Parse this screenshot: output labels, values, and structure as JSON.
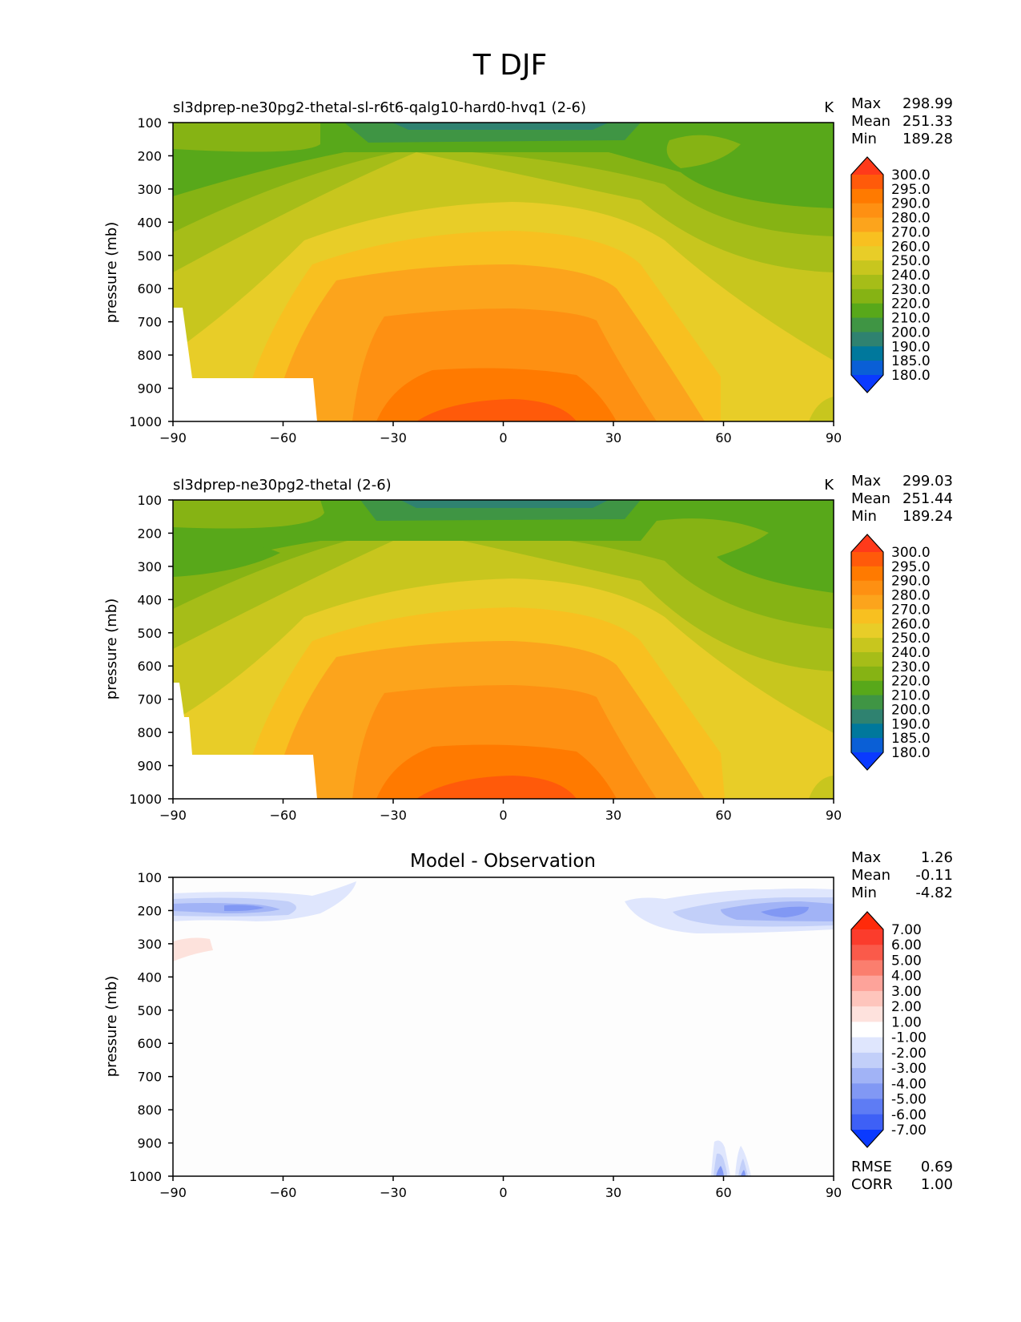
{
  "figure": {
    "title": "T DJF"
  },
  "chart_data": [
    {
      "type": "heatmap",
      "title": "sl3dprep-ne30pg2-thetal-sl-r6t6-qalg10-hard0-hvq1 (2-6)",
      "units": "K",
      "ylabel": "pressure (mb)",
      "xlim": [
        -90,
        90
      ],
      "ylim": [
        1000,
        100
      ],
      "x_ticks": [
        "−90",
        "−60",
        "−30",
        "0",
        "30",
        "60",
        "90"
      ],
      "y_ticks": [
        "100",
        "200",
        "300",
        "400",
        "500",
        "600",
        "700",
        "800",
        "900",
        "1000"
      ],
      "stats": {
        "max_label": "Max",
        "max": "298.99",
        "mean_label": "Mean",
        "mean": "251.33",
        "min_label": "Min",
        "min": "189.28"
      },
      "colorbar_levels": [
        "300.0",
        "295.0",
        "290.0",
        "280.0",
        "270.0",
        "260.0",
        "250.0",
        "240.0",
        "230.0",
        "220.0",
        "210.0",
        "200.0",
        "190.0",
        "185.0",
        "180.0"
      ],
      "colorbar_colors": [
        "#ff3a1a",
        "#ff5a0a",
        "#ff7a00",
        "#fe9012",
        "#fca41c",
        "#f8c020",
        "#e8cd28",
        "#c8c61e",
        "#a6bd18",
        "#86b314",
        "#58a81a",
        "#3f9544",
        "#2f8270",
        "#00789c",
        "#0a5fd6",
        "#0a3aff"
      ]
    },
    {
      "type": "heatmap",
      "title": "sl3dprep-ne30pg2-thetal (2-6)",
      "units": "K",
      "ylabel": "pressure (mb)",
      "xlim": [
        -90,
        90
      ],
      "ylim": [
        1000,
        100
      ],
      "x_ticks": [
        "−90",
        "−60",
        "−30",
        "0",
        "30",
        "60",
        "90"
      ],
      "y_ticks": [
        "100",
        "200",
        "300",
        "400",
        "500",
        "600",
        "700",
        "800",
        "900",
        "1000"
      ],
      "stats": {
        "max_label": "Max",
        "max": "299.03",
        "mean_label": "Mean",
        "mean": "251.44",
        "min_label": "Min",
        "min": "189.24"
      },
      "colorbar_levels": [
        "300.0",
        "295.0",
        "290.0",
        "280.0",
        "270.0",
        "260.0",
        "250.0",
        "240.0",
        "230.0",
        "220.0",
        "210.0",
        "200.0",
        "190.0",
        "185.0",
        "180.0"
      ],
      "colorbar_colors": [
        "#ff3a1a",
        "#ff5a0a",
        "#ff7a00",
        "#fe9012",
        "#fca41c",
        "#f8c020",
        "#e8cd28",
        "#c8c61e",
        "#a6bd18",
        "#86b314",
        "#58a81a",
        "#3f9544",
        "#2f8270",
        "#00789c",
        "#0a5fd6",
        "#0a3aff"
      ]
    },
    {
      "type": "heatmap",
      "title": "Model - Observation",
      "ylabel": "pressure (mb)",
      "xlim": [
        -90,
        90
      ],
      "ylim": [
        1000,
        100
      ],
      "x_ticks": [
        "−90",
        "−60",
        "−30",
        "0",
        "30",
        "60",
        "90"
      ],
      "y_ticks": [
        "100",
        "200",
        "300",
        "400",
        "500",
        "600",
        "700",
        "800",
        "900",
        "1000"
      ],
      "stats": {
        "max_label": "Max",
        "max": "1.26",
        "mean_label": "Mean",
        "mean": "-0.11",
        "min_label": "Min",
        "min": "-4.82"
      },
      "colorbar_levels": [
        "7.00",
        "6.00",
        "5.00",
        "4.00",
        "3.00",
        "2.00",
        "1.00",
        "-1.00",
        "-2.00",
        "-3.00",
        "-4.00",
        "-5.00",
        "-6.00",
        "-7.00"
      ],
      "colorbar_colors": [
        "#ff2a0a",
        "#fb3c2c",
        "#fa5a4a",
        "#fb7e6e",
        "#fda39a",
        "#fec5bc",
        "#fee2dd",
        "#ffffff",
        "#dfe6fd",
        "#c2cff9",
        "#a1b3f6",
        "#8198f4",
        "#5e7cf4",
        "#3e60f6",
        "#0a3aff"
      ],
      "metrics": {
        "rmse_label": "RMSE",
        "rmse": "0.69",
        "corr_label": "CORR",
        "corr": "1.00"
      }
    }
  ]
}
